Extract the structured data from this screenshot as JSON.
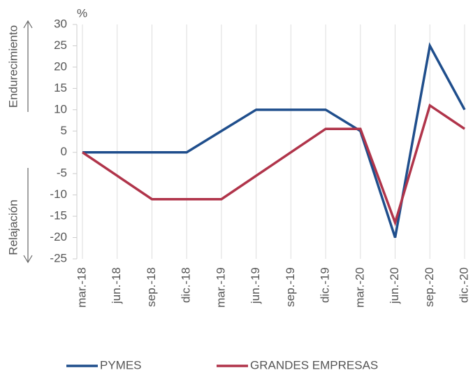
{
  "chart_data": {
    "type": "line",
    "unit_label": "%",
    "annotations": [
      "Endurecimiento",
      "Relajación"
    ],
    "categories": [
      "mar.-18",
      "jun.-18",
      "sep.-18",
      "dic.-18",
      "mar.-19",
      "jun.-19",
      "sep.-19",
      "dic.-19",
      "mar.-20",
      "jun.-20",
      "sep.-20",
      "dic.-20"
    ],
    "series": [
      {
        "name": "PYMES",
        "color": "#1f4e8c",
        "values": [
          0,
          0,
          0,
          0,
          5,
          10,
          10,
          10,
          5,
          -20,
          25,
          10
        ]
      },
      {
        "name": "GRANDES EMPRESAS",
        "color": "#b0344a",
        "values": [
          0,
          -5.5,
          -11,
          -11,
          -11,
          -5.5,
          0,
          5.5,
          5.5,
          -16.5,
          11,
          5.5
        ]
      }
    ],
    "ylim": [
      -25,
      30
    ],
    "yticks": [
      30,
      25,
      20,
      15,
      10,
      5,
      0,
      -5,
      -10,
      -15,
      -20,
      -25
    ],
    "grid": true,
    "legend": "bottom"
  }
}
